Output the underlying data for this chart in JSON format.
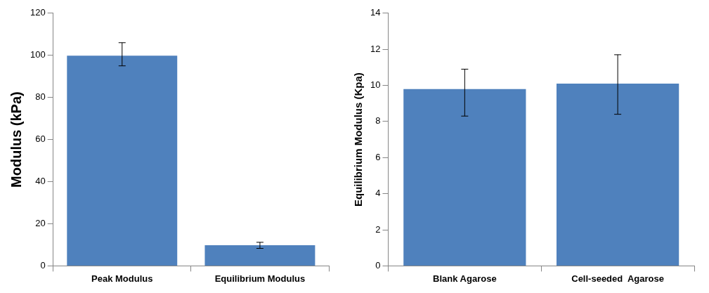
{
  "chart_data": [
    {
      "type": "bar",
      "ylabel": "Modulus (kPa)",
      "categories": [
        "Peak Modulus",
        "Equilibrium Modulus"
      ],
      "values": [
        99.8,
        9.8
      ],
      "errors": [
        [
          95,
          106
        ],
        [
          8.3,
          11.2
        ]
      ],
      "color": "#4f81bd",
      "ylim": [
        0,
        120
      ],
      "yticks": [
        0,
        20,
        40,
        60,
        80,
        100,
        120
      ],
      "grid": false,
      "legend": false
    },
    {
      "type": "bar",
      "ylabel": "Equilibrium Modulus (Kpa)",
      "categories": [
        "Blank Agarose",
        "Cell-seeded  Agarose"
      ],
      "values": [
        9.8,
        10.1
      ],
      "errors": [
        [
          8.3,
          10.9
        ],
        [
          8.4,
          11.7
        ]
      ],
      "color": "#4f81bd",
      "ylim": [
        0,
        14
      ],
      "yticks": [
        0,
        2,
        4,
        6,
        8,
        10,
        12,
        14
      ],
      "grid": false,
      "legend": false
    }
  ]
}
